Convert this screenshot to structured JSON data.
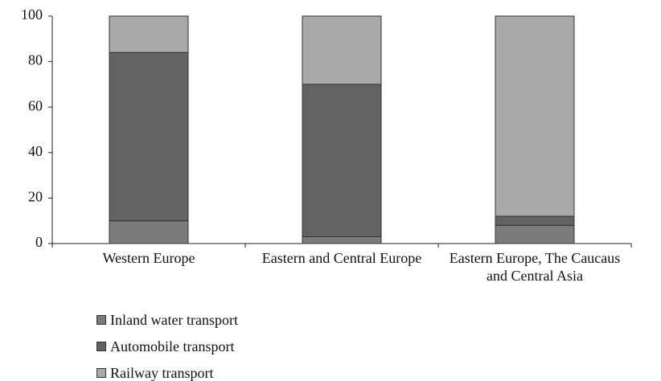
{
  "chart_data": {
    "type": "stacked_bar",
    "categories": [
      "Western Europe",
      "Eastern and Central Europe",
      "Eastern Europe, The Caucaus and Central Asia"
    ],
    "series": [
      {
        "name": "Inland water transport",
        "color": "#7b7b7b",
        "values": [
          10,
          3,
          8
        ]
      },
      {
        "name": "Automobile transport",
        "color": "#636363",
        "values": [
          74,
          67,
          4
        ]
      },
      {
        "name": "Railway transport",
        "color": "#a9a9a9",
        "values": [
          16,
          30,
          88
        ]
      }
    ],
    "ylim": [
      0,
      100
    ],
    "yticks": [
      0,
      20,
      40,
      60,
      80,
      100
    ],
    "grid": false,
    "legend": "bottom-left"
  }
}
